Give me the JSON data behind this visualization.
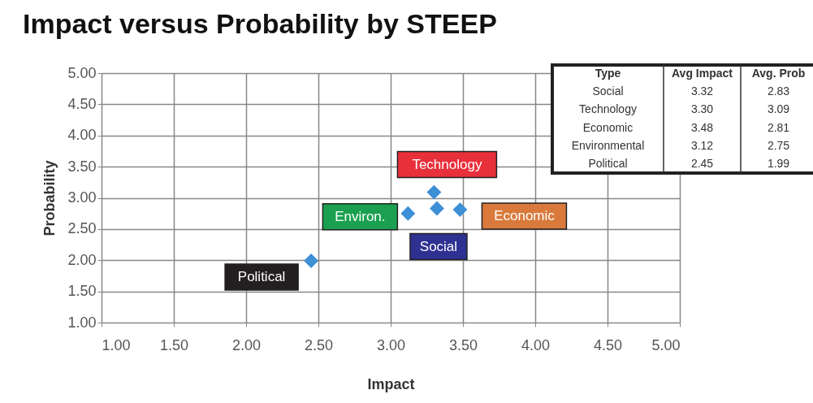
{
  "chart_data": {
    "type": "scatter",
    "title": "Impact versus Probability by STEEP",
    "xlabel": "Impact",
    "ylabel": "Probability",
    "x": [
      3.32,
      3.3,
      3.48,
      3.12,
      2.45
    ],
    "series": [
      {
        "color": "#3d8fd6",
        "values": [
          2.83,
          3.09,
          2.81,
          2.75,
          1.99
        ]
      }
    ],
    "marker": "diamond",
    "grid": true,
    "xlim": [
      1,
      5
    ],
    "ylim": [
      1,
      5
    ],
    "xticks": [
      {
        "value": 1,
        "label": "1.00"
      },
      {
        "value": 1.5,
        "label": "1.50"
      },
      {
        "value": 2,
        "label": "2.00"
      },
      {
        "value": 2.5,
        "label": "2.50"
      },
      {
        "value": 3,
        "label": "3.00"
      },
      {
        "value": 3.5,
        "label": "3.50"
      },
      {
        "value": 4,
        "label": "4.00"
      },
      {
        "value": 4.5,
        "label": "4.50"
      },
      {
        "value": 5,
        "label": "5.00"
      }
    ],
    "yticks": [
      {
        "value": 1,
        "label": "1.00"
      },
      {
        "value": 1.5,
        "label": "1.50"
      },
      {
        "value": 2,
        "label": "2.00"
      },
      {
        "value": 2.5,
        "label": "2.50"
      },
      {
        "value": 3,
        "label": "3.00"
      },
      {
        "value": 3.5,
        "label": "3.50"
      },
      {
        "value": 4,
        "label": "4.00"
      },
      {
        "value": 4.5,
        "label": "4.50"
      },
      {
        "value": 5,
        "label": "5.00"
      }
    ],
    "annotations": [
      {
        "text": "Social",
        "x": 3.32,
        "y": 2.83
      },
      {
        "text": "Technology",
        "x": 3.3,
        "y": 3.09
      },
      {
        "text": "Economic",
        "x": 3.48,
        "y": 2.81
      },
      {
        "text": "Environ.",
        "x": 3.12,
        "y": 2.75
      },
      {
        "text": "Political",
        "x": 2.45,
        "y": 1.99
      },
      "Type",
      "Avg Impact",
      "Avg. Prob",
      "Social",
      "3.32",
      "2.83",
      "Technology",
      "3.30",
      "3.09",
      "Economic",
      "3.48",
      "2.81",
      "Environmental",
      "3.12",
      "2.75",
      "Political",
      "2.45",
      "1.99"
    ]
  }
}
